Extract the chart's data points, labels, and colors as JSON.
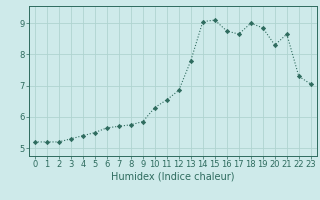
{
  "x": [
    0,
    1,
    2,
    3,
    4,
    5,
    6,
    7,
    8,
    9,
    10,
    11,
    12,
    13,
    14,
    15,
    16,
    17,
    18,
    19,
    20,
    21,
    22,
    23
  ],
  "y": [
    5.2,
    5.2,
    5.2,
    5.3,
    5.4,
    5.5,
    5.65,
    5.7,
    5.75,
    5.85,
    6.3,
    6.55,
    6.85,
    7.8,
    9.05,
    9.1,
    8.75,
    8.65,
    9.0,
    8.85,
    8.3,
    8.65,
    7.3,
    7.05
  ],
  "line_color": "#2e6b5e",
  "marker": "D",
  "marker_size": 2.2,
  "bg_color": "#ceeaea",
  "grid_color": "#afd4d0",
  "xlabel": "Humidex (Indice chaleur)",
  "xlim": [
    -0.5,
    23.5
  ],
  "ylim": [
    4.75,
    9.55
  ],
  "yticks": [
    5,
    6,
    7,
    8,
    9
  ],
  "xticks": [
    0,
    1,
    2,
    3,
    4,
    5,
    6,
    7,
    8,
    9,
    10,
    11,
    12,
    13,
    14,
    15,
    16,
    17,
    18,
    19,
    20,
    21,
    22,
    23
  ],
  "tick_color": "#2e6b5e",
  "label_color": "#2e6b5e",
  "font_size": 6.0,
  "xlabel_fontsize": 7.0
}
